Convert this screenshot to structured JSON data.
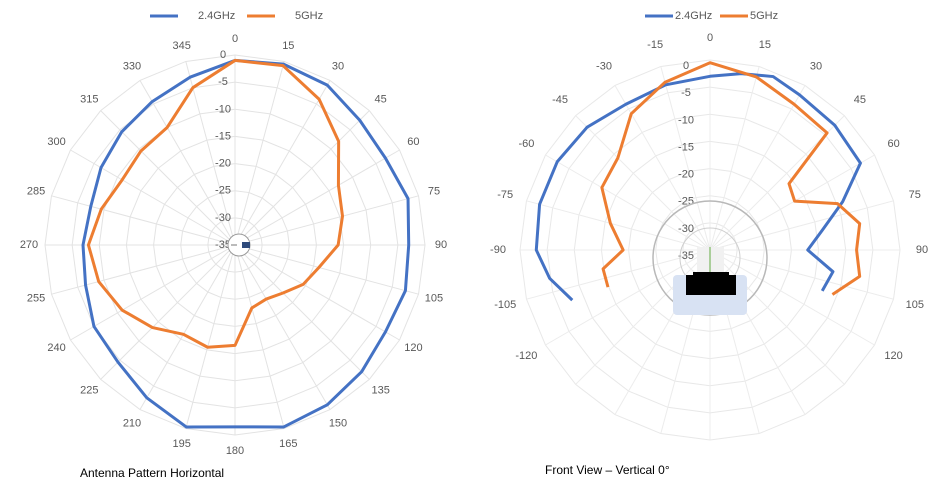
{
  "chart_data": [
    {
      "type": "polar-line",
      "title": "Antenna Pattern Horizontal",
      "angle_labels": [
        "180",
        "195",
        "210",
        "225",
        "240",
        "255",
        "270",
        "285",
        "300",
        "315",
        "330",
        "345",
        "0",
        "15",
        "30",
        "45",
        "60",
        "75",
        "90",
        "105",
        "120",
        "135",
        "150",
        "165"
      ],
      "radial_labels": [
        "0",
        "-5",
        "-10",
        "-15",
        "-20",
        "-25",
        "-30",
        "-35"
      ],
      "r_range": [
        -35,
        0
      ],
      "legend": [
        "2.4GHz",
        "5GHz"
      ],
      "series": [
        {
          "name": "2.4GHz",
          "color": "#4472C4",
          "values": [
            -1.5,
            -0.3,
            -2.5,
            -4.5,
            -5,
            -6.5,
            -7,
            -7.5,
            -6.5,
            -5.5,
            -4.5,
            -3,
            -1,
            -0.5,
            -1,
            -2.5,
            -3,
            -2,
            -3,
            -2.5,
            -3,
            -2,
            -1,
            -0.3
          ]
        },
        {
          "name": "5GHz",
          "color": "#ED7D31",
          "values": [
            -16.5,
            -15.5,
            -16,
            -13.5,
            -11,
            -9,
            -8,
            -9.5,
            -11,
            -10.5,
            -10,
            -5,
            -1,
            -0.8,
            -4,
            -8,
            -13,
            -14.5,
            -16,
            -19,
            -20.5,
            -22.5,
            -23.5,
            -23
          ]
        }
      ]
    },
    {
      "type": "polar-line",
      "title": "Front View – Vertical 0°",
      "angle_labels": [
        "-120",
        "-105",
        "-90",
        "-75",
        "-60",
        "-45",
        "-30",
        "-15",
        "0",
        "15",
        "30",
        "45",
        "60",
        "75",
        "90",
        "105",
        "120"
      ],
      "radial_labels": [
        "0",
        "-5",
        "-10",
        "-15",
        "-20",
        "-25",
        "-30",
        "-35"
      ],
      "r_range": [
        -35,
        0
      ],
      "legend": [
        "2.4GHz",
        "5GHz"
      ],
      "series": [
        {
          "name": "2.4GHz",
          "color": "#4472C4",
          "points": [
            [
              -110,
              -8
            ],
            [
              -100,
              -5
            ],
            [
              -90,
              -3
            ],
            [
              -75,
              -2.5
            ],
            [
              -60,
              -2.5
            ],
            [
              -45,
              -3
            ],
            [
              -30,
              -4
            ],
            [
              -15,
              -3.5
            ],
            [
              0,
              -3
            ],
            [
              10,
              -2
            ],
            [
              20,
              -1
            ],
            [
              30,
              -2
            ],
            [
              45,
              -2.5
            ],
            [
              60,
              -3
            ],
            [
              70,
              -9
            ],
            [
              80,
              -14
            ],
            [
              90,
              -17
            ],
            [
              100,
              -12
            ],
            [
              110,
              -13
            ]
          ]
        },
        {
          "name": "5GHz",
          "color": "#ED7D31",
          "points": [
            [
              -110,
              -15
            ],
            [
              -100,
              -15
            ],
            [
              -90,
              -19
            ],
            [
              -75,
              -16
            ],
            [
              -60,
              -12
            ],
            [
              -45,
              -11
            ],
            [
              -30,
              -6
            ],
            [
              -15,
              -3
            ],
            [
              0,
              -0.5
            ],
            [
              15,
              -2
            ],
            [
              30,
              -4
            ],
            [
              45,
              -4.5
            ],
            [
              50,
              -16
            ],
            [
              60,
              -17
            ],
            [
              70,
              -10
            ],
            [
              80,
              -7
            ],
            [
              90,
              -8
            ],
            [
              100,
              -7
            ],
            [
              110,
              -11
            ]
          ]
        }
      ]
    }
  ],
  "captions": {
    "left": "Antenna Pattern Horizontal",
    "right": "Front View – Vertical 0°"
  }
}
